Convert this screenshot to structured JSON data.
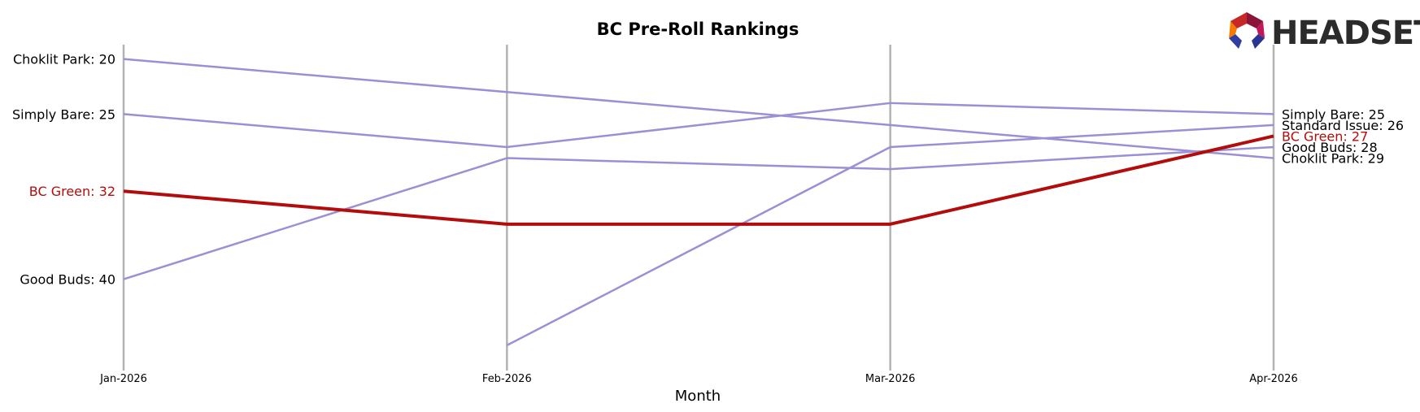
{
  "chart_data": {
    "type": "line",
    "title": "BC Pre-Roll Rankings",
    "xlabel": "Month",
    "ylabel": "",
    "categories": [
      "Jan-2026",
      "Feb-2026",
      "Mar-2026",
      "Apr-2026"
    ],
    "ylim": [
      48,
      18.7
    ],
    "grid": "vertical",
    "series": [
      {
        "name": "Choklit Park",
        "values": [
          20,
          23,
          26,
          29
        ],
        "color": "#9b8fd6",
        "highlight": false
      },
      {
        "name": "Simply Bare",
        "values": [
          25,
          28,
          24,
          25
        ],
        "color": "#9b8fd6",
        "highlight": false
      },
      {
        "name": "Good Buds",
        "values": [
          40,
          29,
          30,
          28
        ],
        "color": "#9b8fd6",
        "highlight": false
      },
      {
        "name": "Standard Issue",
        "values": [
          null,
          46,
          28,
          26
        ],
        "color": "#9b8fd6",
        "highlight": false
      },
      {
        "name": "BC Green",
        "values": [
          32,
          35,
          35,
          27
        ],
        "color": "#b20c0c",
        "highlight": true
      }
    ],
    "left_labels": [
      {
        "series": "Choklit Park",
        "text": "Choklit Park: 20"
      },
      {
        "series": "Simply Bare",
        "text": "Simply Bare: 25"
      },
      {
        "series": "BC Green",
        "text": "BC Green: 32"
      },
      {
        "series": "Good Buds",
        "text": "Good Buds: 40"
      }
    ],
    "right_labels": [
      {
        "series": "Simply Bare",
        "text": "Simply Bare: 25"
      },
      {
        "series": "Standard Issue",
        "text": "Standard Issue: 26"
      },
      {
        "series": "BC Green",
        "text": "BC Green: 27"
      },
      {
        "series": "Good Buds",
        "text": "Good Buds: 28"
      },
      {
        "series": "Choklit Park",
        "text": "Choklit Park: 29"
      }
    ]
  },
  "logo": {
    "text": "HEADSET"
  }
}
